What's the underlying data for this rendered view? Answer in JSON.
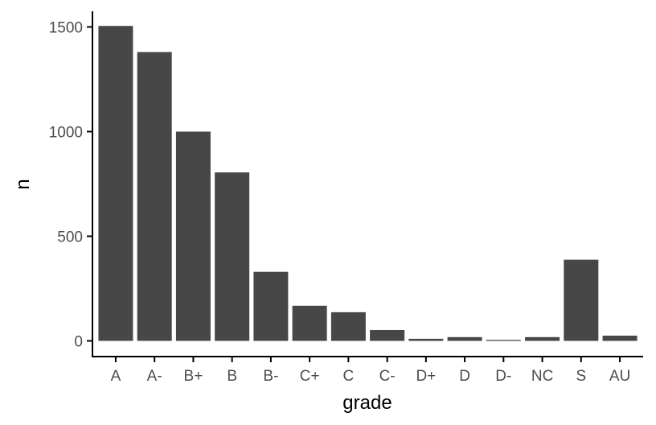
{
  "chart_data": {
    "type": "bar",
    "categories": [
      "A",
      "A-",
      "B+",
      "B",
      "B-",
      "C+",
      "C",
      "C-",
      "D+",
      "D",
      "D-",
      "NC",
      "S",
      "AU"
    ],
    "values": [
      1505,
      1380,
      1000,
      805,
      330,
      168,
      137,
      52,
      10,
      18,
      5,
      18,
      388,
      25
    ],
    "title": "",
    "xlabel": "grade",
    "ylabel": "n",
    "ylim": [
      -75,
      1575
    ],
    "yticks": [
      0,
      500,
      1000,
      1500
    ],
    "grid": false,
    "legend": "none",
    "bar_color": "#474747"
  }
}
